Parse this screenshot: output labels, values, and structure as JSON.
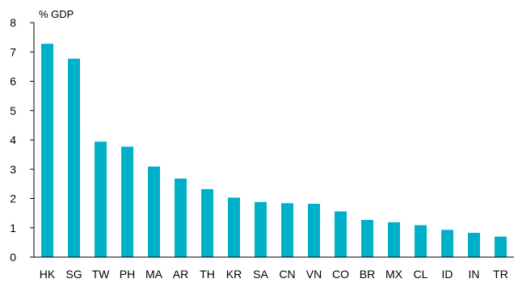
{
  "chart_data": {
    "type": "bar",
    "title": "",
    "ylabel": "% GDP",
    "xlabel": "",
    "categories": [
      "HK",
      "SG",
      "TW",
      "PH",
      "MA",
      "AR",
      "TH",
      "KR",
      "SA",
      "CN",
      "VN",
      "CO",
      "BR",
      "MX",
      "CL",
      "ID",
      "IN",
      "TR"
    ],
    "series": [
      {
        "values": [
          7.28,
          6.77,
          3.94,
          3.77,
          3.09,
          2.68,
          2.32,
          2.03,
          1.88,
          1.84,
          1.82,
          1.56,
          1.27,
          1.19,
          1.09,
          0.93,
          0.83,
          0.7
        ]
      }
    ],
    "ylim": [
      0,
      8
    ],
    "yticks": [
      "0",
      "1",
      "2",
      "3",
      "4",
      "5",
      "6",
      "7",
      "8"
    ],
    "grid": false,
    "legend": "none",
    "bar_color": "#00B0C8",
    "axis_color": "#000000"
  }
}
